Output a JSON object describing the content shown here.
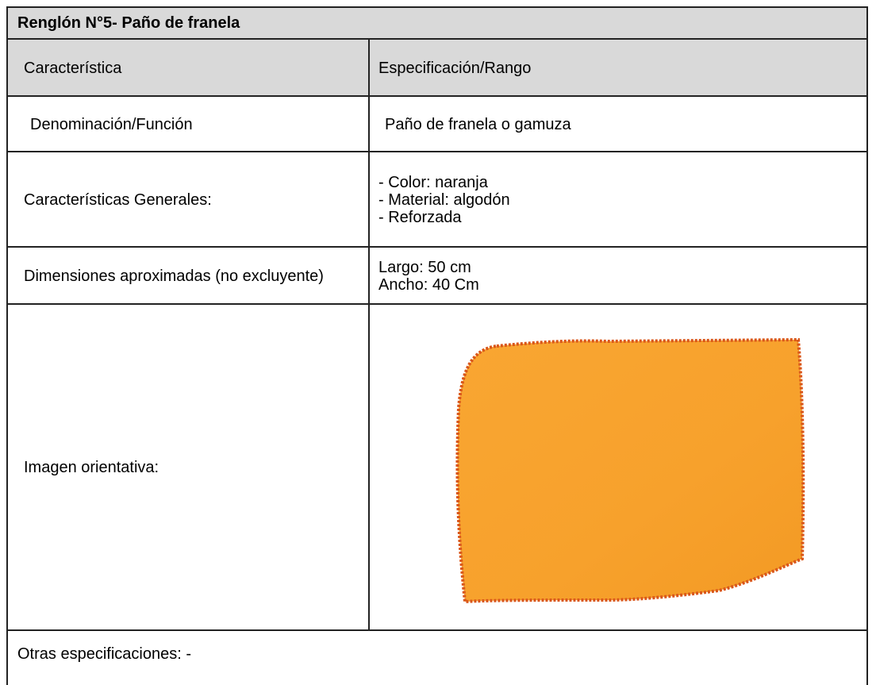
{
  "header": {
    "title": "Renglón N°5- Paño de franela"
  },
  "table": {
    "header": [
      "Característica",
      "Especificación/Rango"
    ],
    "rows": [
      {
        "label": "Denominación/Función",
        "lines": [
          "Paño de franela o gamuza"
        ]
      },
      {
        "label": "Características Generales:",
        "lines": [
          "- Color: naranja",
          "- Material: algodón",
          "- Reforzada"
        ]
      },
      {
        "label": "Dimensiones aproximadas (no excluyente)",
        "lines": [
          "Largo: 50 cm",
          "Ancho: 40 Cm"
        ]
      },
      {
        "label": "Imagen orientativa:"
      }
    ]
  },
  "footer": {
    "text": "Otras especificaciones: -"
  }
}
